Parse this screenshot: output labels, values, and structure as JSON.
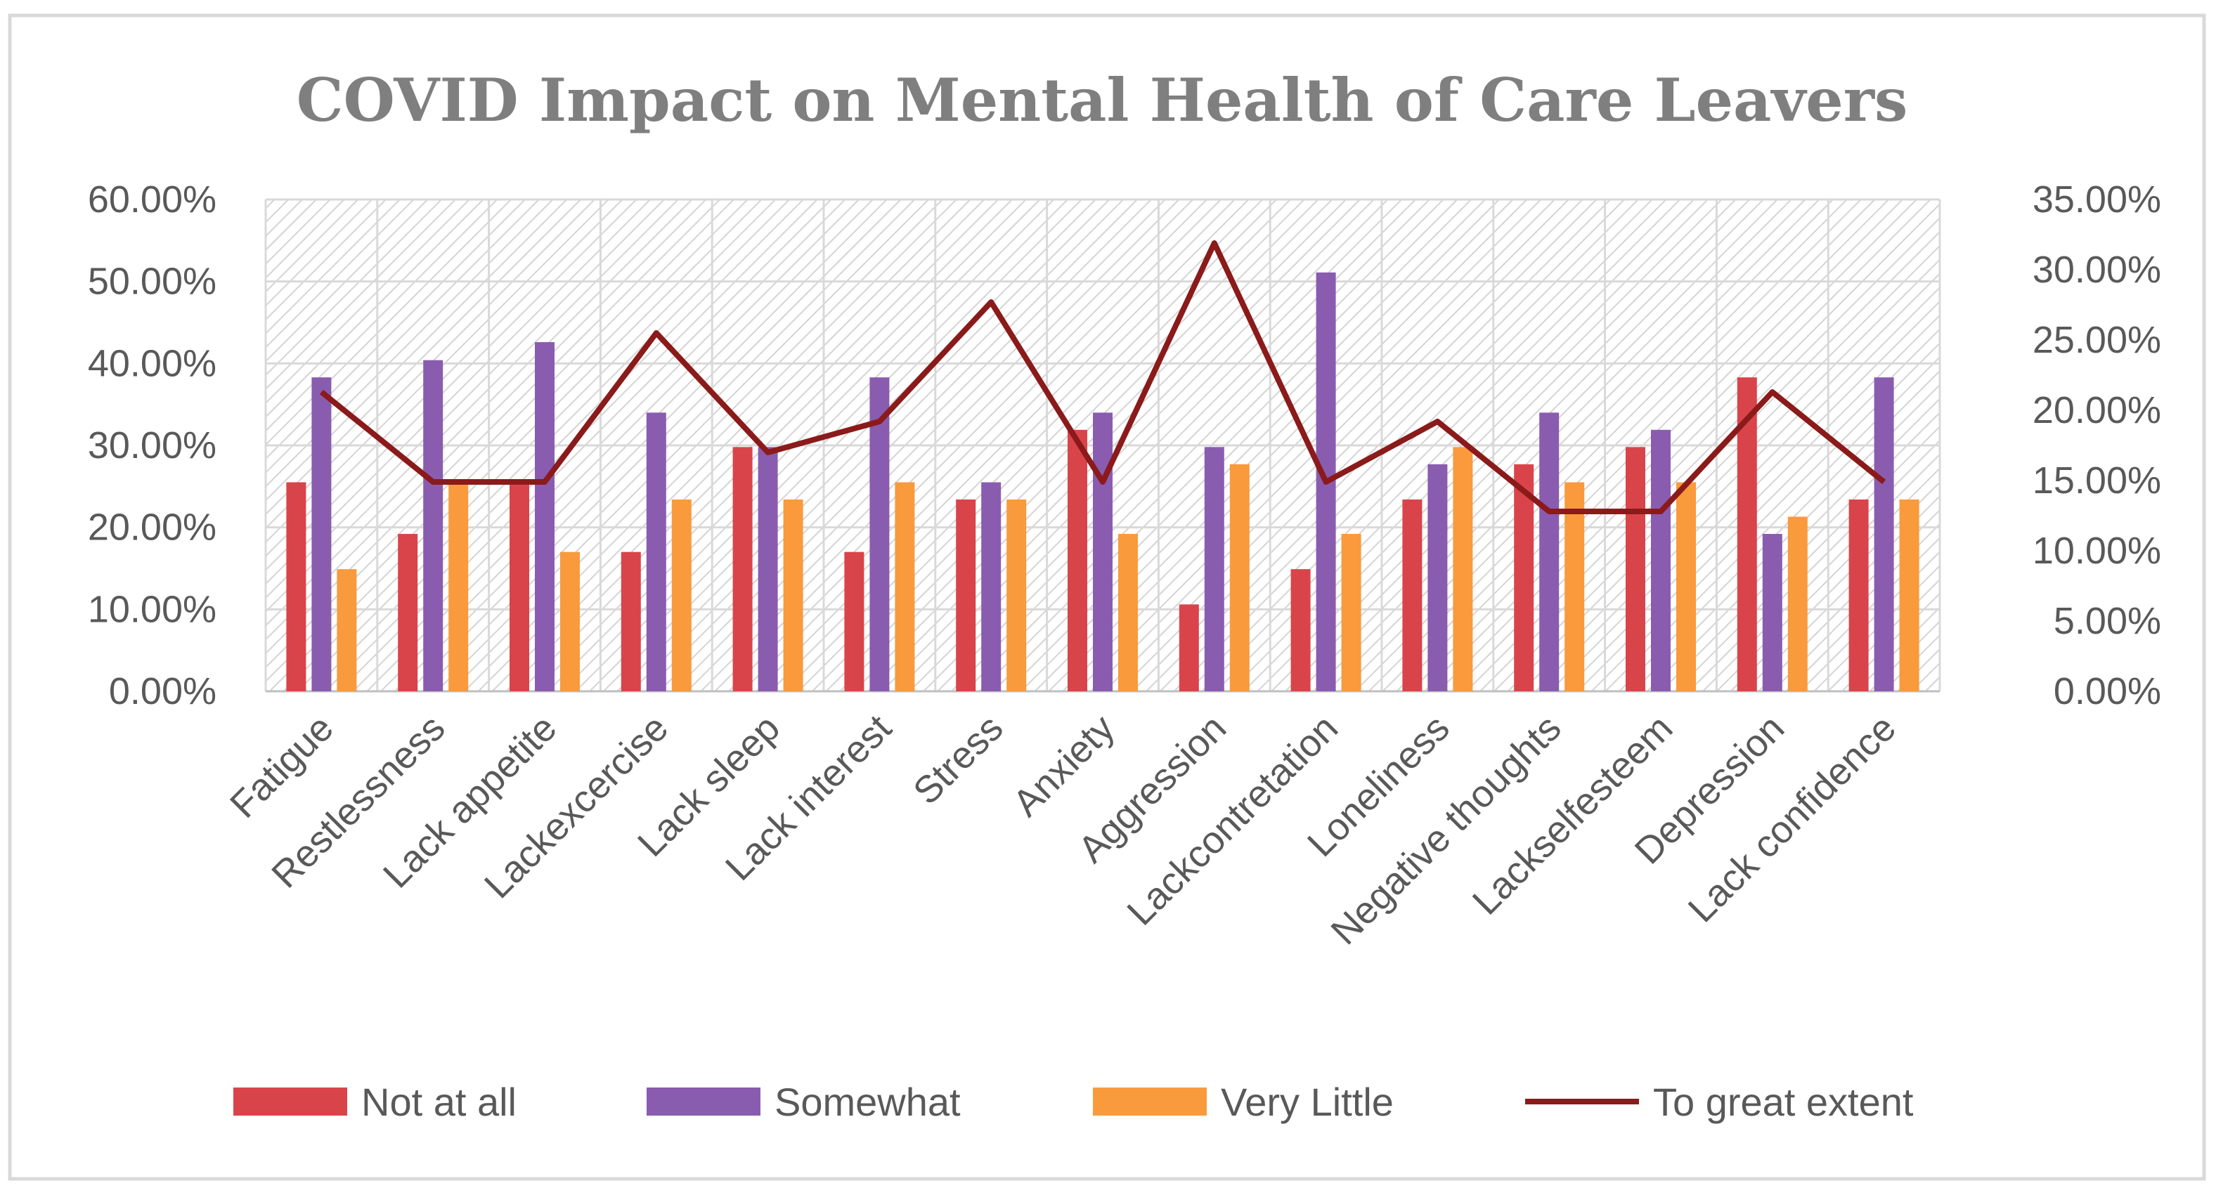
{
  "chart_data": {
    "type": "bar",
    "title": "COVID Impact on Mental Health of Care Leavers",
    "categories": [
      "Fatigue",
      "Restlessness",
      "Lack appetite",
      "Lackexcercise",
      "Lack sleep",
      "Lack interest",
      "Stress",
      "Anxiety",
      "Aggression",
      "Lackcontretation",
      "Loneliness",
      "Negative thoughts",
      "Lackselfesteem",
      "Depression",
      "Lack confidence"
    ],
    "series": [
      {
        "name": "Not at all",
        "axis": "left",
        "kind": "bar",
        "color": "#d9444a",
        "values": [
          25.5,
          19.2,
          25.5,
          17.0,
          29.8,
          17.0,
          23.4,
          31.9,
          10.6,
          14.9,
          23.4,
          27.7,
          29.8,
          38.3,
          23.4
        ]
      },
      {
        "name": "Somewhat",
        "axis": "left",
        "kind": "bar",
        "color": "#8a5cb0",
        "values": [
          38.3,
          40.4,
          42.6,
          34.0,
          29.8,
          38.3,
          25.5,
          34.0,
          29.8,
          51.1,
          27.7,
          34.0,
          31.9,
          19.2,
          38.3
        ]
      },
      {
        "name": "Very Little",
        "axis": "left",
        "kind": "bar",
        "color": "#f99a3c",
        "values": [
          14.9,
          25.5,
          17.0,
          23.4,
          23.4,
          25.5,
          23.4,
          19.2,
          27.7,
          19.2,
          29.8,
          25.5,
          25.5,
          21.3,
          23.4
        ]
      },
      {
        "name": "To great extent",
        "axis": "right",
        "kind": "line",
        "color": "#8b1a1a",
        "values": [
          21.3,
          14.9,
          14.9,
          25.5,
          17.0,
          19.2,
          27.7,
          14.9,
          31.9,
          14.9,
          19.2,
          12.8,
          12.8,
          21.3,
          14.9
        ]
      }
    ],
    "y_left": {
      "min": 0,
      "max": 60,
      "step": 10,
      "tick_labels": [
        "0.00%",
        "10.00%",
        "20.00%",
        "30.00%",
        "40.00%",
        "50.00%",
        "60.00%"
      ]
    },
    "y_right": {
      "min": 0,
      "max": 35,
      "step": 5,
      "tick_labels": [
        "0.00%",
        "5.00%",
        "10.00%",
        "15.00%",
        "20.00%",
        "25.00%",
        "30.00%",
        "35.00%"
      ]
    },
    "legend_position": "bottom",
    "grid": true
  }
}
